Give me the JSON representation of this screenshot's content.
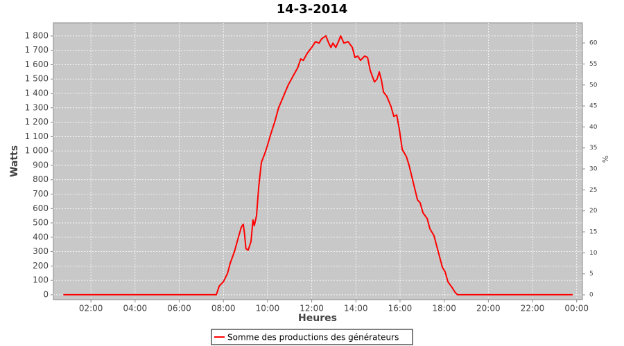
{
  "chart_data": {
    "type": "line",
    "title": "14-3-2014",
    "x_label": "Heures",
    "y_label": "Watts",
    "y2_label": "%",
    "x": [
      0.75,
      7.3,
      7.68,
      7.81,
      8.0,
      8.19,
      8.31,
      8.5,
      8.68,
      8.81,
      8.9,
      8.96,
      9.02,
      9.12,
      9.25,
      9.34,
      9.4,
      9.5,
      9.6,
      9.72,
      9.87,
      9.98,
      10.13,
      10.32,
      10.5,
      10.72,
      10.94,
      11.19,
      11.37,
      11.5,
      11.62,
      11.8,
      12.0,
      12.17,
      12.33,
      12.45,
      12.64,
      12.77,
      12.87,
      12.96,
      13.09,
      13.21,
      13.31,
      13.46,
      13.65,
      13.84,
      13.96,
      14.09,
      14.21,
      14.4,
      14.53,
      14.65,
      14.84,
      14.96,
      15.06,
      15.16,
      15.25,
      15.4,
      15.59,
      15.72,
      15.85,
      15.97,
      16.1,
      16.29,
      16.41,
      16.6,
      16.79,
      16.91,
      17.04,
      17.23,
      17.35,
      17.54,
      17.73,
      17.92,
      18.04,
      18.17,
      18.36,
      18.48,
      18.6,
      23.82
    ],
    "series": [
      {
        "name": "Somme des productions des  générateurs",
        "color": "#ff0000",
        "values": [
          0,
          0,
          0,
          60,
          90,
          150,
          220,
          300,
          400,
          470,
          490,
          420,
          320,
          310,
          370,
          520,
          480,
          550,
          750,
          920,
          980,
          1030,
          1110,
          1200,
          1300,
          1380,
          1460,
          1530,
          1580,
          1640,
          1630,
          1680,
          1720,
          1760,
          1750,
          1780,
          1800,
          1750,
          1720,
          1750,
          1720,
          1760,
          1800,
          1750,
          1760,
          1720,
          1650,
          1660,
          1630,
          1660,
          1650,
          1560,
          1480,
          1500,
          1550,
          1490,
          1410,
          1380,
          1310,
          1240,
          1250,
          1150,
          1010,
          960,
          900,
          780,
          660,
          640,
          570,
          530,
          460,
          410,
          300,
          190,
          160,
          90,
          50,
          20,
          0,
          0
        ]
      }
    ],
    "xlim": [
      0.3,
      24.26
    ],
    "xticks": [
      {
        "value": 2,
        "label": "02:00"
      },
      {
        "value": 4,
        "label": "04:00"
      },
      {
        "value": 6,
        "label": "06:00"
      },
      {
        "value": 8,
        "label": "08:00"
      },
      {
        "value": 10,
        "label": "10:00"
      },
      {
        "value": 12,
        "label": "12:00"
      },
      {
        "value": 14,
        "label": "14:00"
      },
      {
        "value": 16,
        "label": "16:00"
      },
      {
        "value": 18,
        "label": "18:00"
      },
      {
        "value": 20,
        "label": "20:00"
      },
      {
        "value": 22,
        "label": "22:00"
      },
      {
        "value": 24,
        "label": "00:00"
      }
    ],
    "ylim": [
      -34,
      1891
    ],
    "yticks": [
      0,
      100,
      200,
      300,
      400,
      500,
      600,
      700,
      800,
      900,
      {
        "value": 1000,
        "label": "1 000"
      },
      {
        "value": 1100,
        "label": "1 100"
      },
      {
        "value": 1200,
        "label": "1 200"
      },
      {
        "value": 1300,
        "label": "1 300"
      },
      {
        "value": 1400,
        "label": "1 400"
      },
      {
        "value": 1500,
        "label": "1 500"
      },
      {
        "value": 1600,
        "label": "1 600"
      },
      {
        "value": 1700,
        "label": "1 700"
      },
      {
        "value": 1800,
        "label": "1 800"
      }
    ],
    "y2lim": [
      -1.15,
      64.8
    ],
    "y2ticks": [
      0,
      5,
      10,
      15,
      20,
      25,
      30,
      35,
      40,
      45,
      50,
      55,
      60
    ],
    "grid": true,
    "legend": "bottom"
  }
}
